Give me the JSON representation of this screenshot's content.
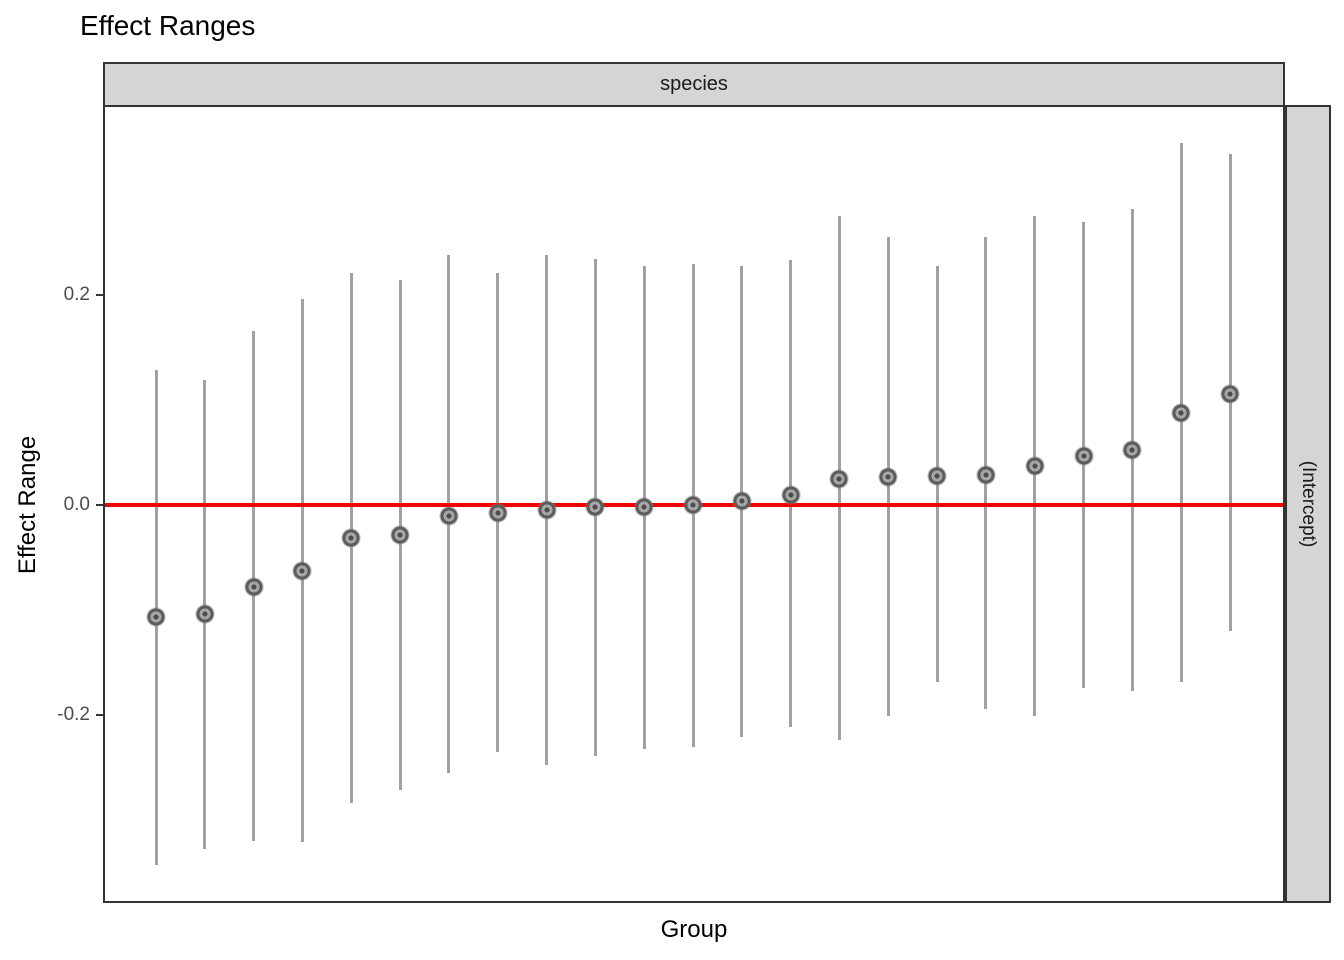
{
  "page": {
    "title": "Effect Ranges"
  },
  "chart_data": {
    "type": "pointrange",
    "title": "Effect Ranges",
    "facet_top_label": "species",
    "facet_right_label": "(Intercept)",
    "xlabel": "Group",
    "ylabel": "Effect Range",
    "ylim": [
      -0.378,
      0.379
    ],
    "x_tick_labels_visible": false,
    "grid": false,
    "yticks": [
      {
        "value": 0.2,
        "label": "0.2"
      },
      {
        "value": 0.0,
        "label": "0.0"
      },
      {
        "value": -0.2,
        "label": "-0.2"
      }
    ],
    "reference_line": {
      "y": 0.0,
      "color": "#F40000"
    },
    "points": [
      {
        "group": 1,
        "est": -0.107,
        "lo": -0.343,
        "hi": 0.129
      },
      {
        "group": 2,
        "est": -0.104,
        "lo": -0.328,
        "hi": 0.119
      },
      {
        "group": 3,
        "est": -0.078,
        "lo": -0.32,
        "hi": 0.166
      },
      {
        "group": 4,
        "est": -0.063,
        "lo": -0.321,
        "hi": 0.196
      },
      {
        "group": 5,
        "est": -0.031,
        "lo": -0.284,
        "hi": 0.221
      },
      {
        "group": 6,
        "est": -0.029,
        "lo": -0.271,
        "hi": 0.214
      },
      {
        "group": 7,
        "est": -0.01,
        "lo": -0.255,
        "hi": 0.238
      },
      {
        "group": 8,
        "est": -0.008,
        "lo": -0.235,
        "hi": 0.221
      },
      {
        "group": 9,
        "est": -0.005,
        "lo": -0.248,
        "hi": 0.238
      },
      {
        "group": 10,
        "est": -0.002,
        "lo": -0.239,
        "hi": 0.234
      },
      {
        "group": 11,
        "est": -0.002,
        "lo": -0.232,
        "hi": 0.228
      },
      {
        "group": 12,
        "est": 0.0,
        "lo": -0.23,
        "hi": 0.23
      },
      {
        "group": 13,
        "est": 0.004,
        "lo": -0.221,
        "hi": 0.228
      },
      {
        "group": 14,
        "est": 0.01,
        "lo": -0.211,
        "hi": 0.233
      },
      {
        "group": 15,
        "est": 0.025,
        "lo": -0.224,
        "hi": 0.275
      },
      {
        "group": 16,
        "est": 0.027,
        "lo": -0.201,
        "hi": 0.255
      },
      {
        "group": 17,
        "est": 0.028,
        "lo": -0.169,
        "hi": 0.228
      },
      {
        "group": 18,
        "est": 0.029,
        "lo": -0.194,
        "hi": 0.255
      },
      {
        "group": 19,
        "est": 0.037,
        "lo": -0.201,
        "hi": 0.275
      },
      {
        "group": 20,
        "est": 0.047,
        "lo": -0.174,
        "hi": 0.27
      },
      {
        "group": 21,
        "est": 0.052,
        "lo": -0.177,
        "hi": 0.282
      },
      {
        "group": 22,
        "est": 0.088,
        "lo": -0.169,
        "hi": 0.345
      },
      {
        "group": 23,
        "est": 0.106,
        "lo": -0.12,
        "hi": 0.334
      }
    ],
    "colors": {
      "reference_line": "#F40000",
      "error_bar": "#A1A1A1",
      "point_dark": "#4d4d4d",
      "point_mid": "#5c5c5c",
      "point_light": "#a6a6a6",
      "strip_background": "#D5D5D5",
      "panel_border": "#333333",
      "axis_text": "#4D4D4D"
    }
  }
}
